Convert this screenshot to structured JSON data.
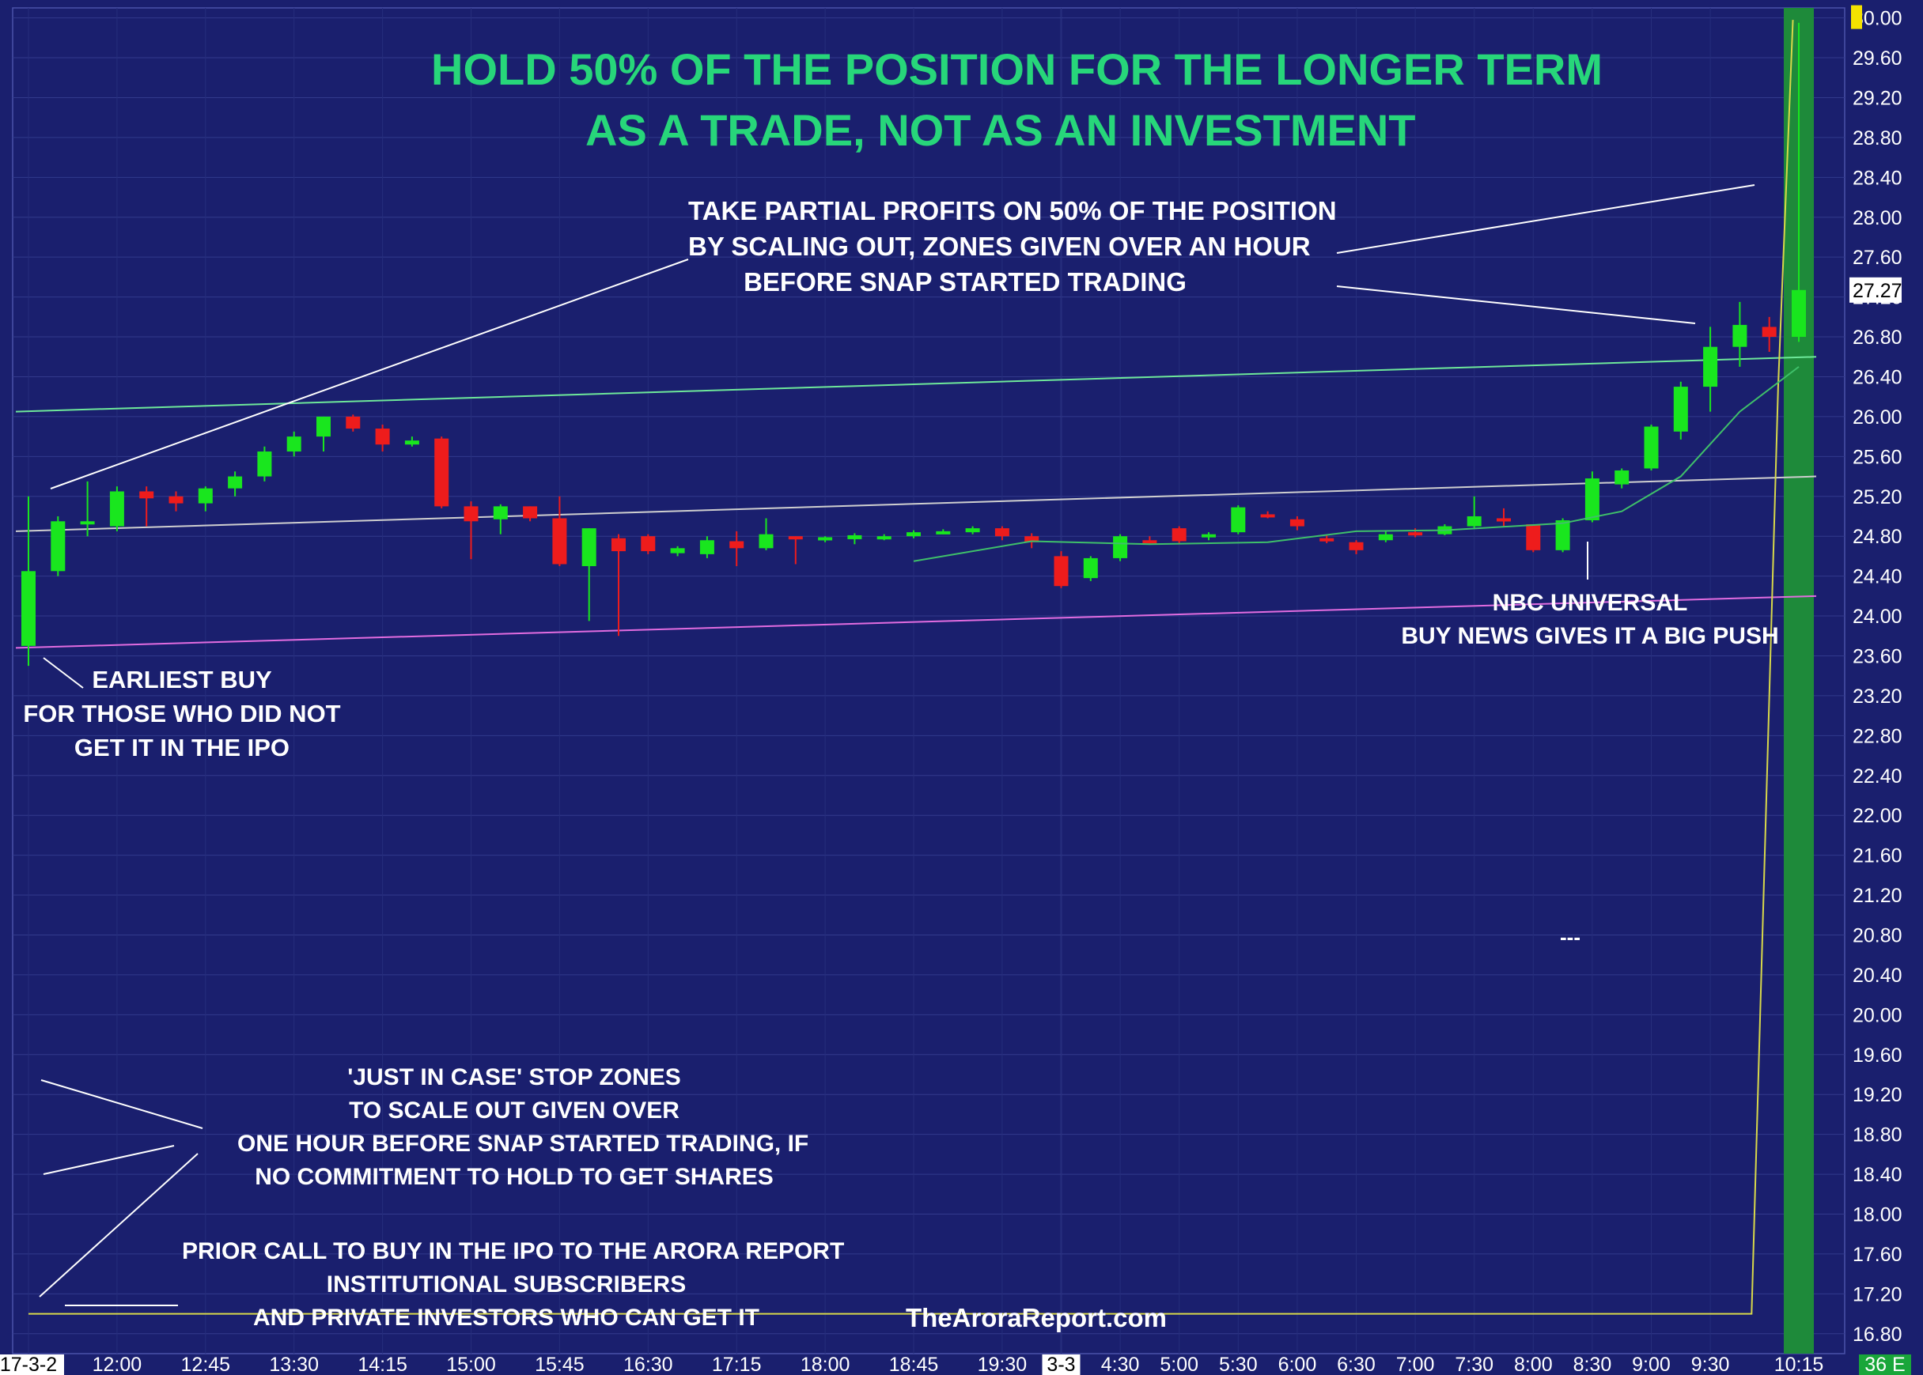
{
  "chart_data": {
    "type": "candlestick",
    "title": "HOLD 50% OF THE POSITION FOR THE LONGER TERM",
    "subtitle": "AS A TRADE, NOT AS AN INVESTMENT",
    "ylim": [
      16.6,
      30.1
    ],
    "yticks": [
      30.0,
      29.6,
      29.2,
      28.8,
      28.4,
      28.0,
      27.6,
      27.2,
      26.8,
      26.4,
      26.0,
      25.6,
      25.2,
      24.8,
      24.4,
      24.0,
      23.6,
      23.2,
      22.8,
      22.4,
      22.0,
      21.6,
      21.2,
      20.8,
      20.4,
      20.0,
      19.6,
      19.2,
      18.8,
      18.4,
      18.0,
      17.6,
      17.2,
      16.8
    ],
    "ytick_labels": [
      "30.00",
      "29.60",
      "29.20",
      "28.80",
      "28.40",
      "28.00",
      "27.60",
      "27.20",
      "26.80",
      "26.40",
      "26.00",
      "25.60",
      "25.20",
      "24.80",
      "24.40",
      "24.00",
      "23.60",
      "23.20",
      "22.80",
      "22.40",
      "22.00",
      "21.60",
      "21.20",
      "20.80",
      "20.40",
      "20.00",
      "19.60",
      "19.20",
      "18.80",
      "18.40",
      "18.00",
      "17.60",
      "17.20",
      "16.80"
    ],
    "last_price_label": "27.27",
    "last_price": 27.27,
    "corner_label": "36 E",
    "xticks": [
      {
        "label": "17-3-2",
        "i": 0,
        "highlight": true
      },
      {
        "label": "12:00",
        "i": 3
      },
      {
        "label": "12:45",
        "i": 6
      },
      {
        "label": "13:30",
        "i": 9
      },
      {
        "label": "14:15",
        "i": 12
      },
      {
        "label": "15:00",
        "i": 15
      },
      {
        "label": "15:45",
        "i": 18
      },
      {
        "label": "16:30",
        "i": 21
      },
      {
        "label": "17:15",
        "i": 24
      },
      {
        "label": "18:00",
        "i": 27
      },
      {
        "label": "18:45",
        "i": 30
      },
      {
        "label": "19:30",
        "i": 33
      },
      {
        "label": "3-3",
        "i": 35,
        "highlight": true
      },
      {
        "label": "4:30",
        "i": 37
      },
      {
        "label": "5:00",
        "i": 39
      },
      {
        "label": "5:30",
        "i": 41
      },
      {
        "label": "6:00",
        "i": 43
      },
      {
        "label": "6:30",
        "i": 45
      },
      {
        "label": "7:00",
        "i": 47
      },
      {
        "label": "7:30",
        "i": 49
      },
      {
        "label": "8:00",
        "i": 51
      },
      {
        "label": "8:30",
        "i": 53
      },
      {
        "label": "9:00",
        "i": 55
      },
      {
        "label": "9:30",
        "i": 57
      },
      {
        "label": "10:15",
        "i": 60
      }
    ],
    "candles": [
      {
        "o": 23.7,
        "h": 25.2,
        "l": 23.5,
        "c": 24.45
      },
      {
        "o": 24.45,
        "h": 25.0,
        "l": 24.4,
        "c": 24.95
      },
      {
        "o": 24.95,
        "h": 25.35,
        "l": 24.8,
        "c": 24.95
      },
      {
        "o": 24.9,
        "h": 25.3,
        "l": 24.85,
        "c": 25.25
      },
      {
        "o": 25.25,
        "h": 25.3,
        "l": 24.9,
        "c": 25.18
      },
      {
        "o": 25.2,
        "h": 25.25,
        "l": 25.05,
        "c": 25.13
      },
      {
        "o": 25.13,
        "h": 25.3,
        "l": 25.05,
        "c": 25.28
      },
      {
        "o": 25.28,
        "h": 25.45,
        "l": 25.2,
        "c": 25.4
      },
      {
        "o": 25.4,
        "h": 25.7,
        "l": 25.35,
        "c": 25.65
      },
      {
        "o": 25.65,
        "h": 25.85,
        "l": 25.6,
        "c": 25.8
      },
      {
        "o": 25.8,
        "h": 26.0,
        "l": 25.65,
        "c": 26.0
      },
      {
        "o": 26.0,
        "h": 26.02,
        "l": 25.85,
        "c": 25.88
      },
      {
        "o": 25.88,
        "h": 25.92,
        "l": 25.65,
        "c": 25.72
      },
      {
        "o": 25.72,
        "h": 25.8,
        "l": 25.7,
        "c": 25.76
      },
      {
        "o": 25.78,
        "h": 25.8,
        "l": 25.08,
        "c": 25.1
      },
      {
        "o": 25.1,
        "h": 25.15,
        "l": 24.57,
        "c": 24.95
      },
      {
        "o": 24.97,
        "h": 25.12,
        "l": 24.82,
        "c": 25.1
      },
      {
        "o": 25.1,
        "h": 25.1,
        "l": 24.95,
        "c": 24.98
      },
      {
        "o": 24.98,
        "h": 25.2,
        "l": 24.5,
        "c": 24.52
      },
      {
        "o": 24.5,
        "h": 24.88,
        "l": 23.95,
        "c": 24.88
      },
      {
        "o": 24.78,
        "h": 24.82,
        "l": 23.8,
        "c": 24.65
      },
      {
        "o": 24.8,
        "h": 24.82,
        "l": 24.62,
        "c": 24.65
      },
      {
        "o": 24.63,
        "h": 24.7,
        "l": 24.6,
        "c": 24.68
      },
      {
        "o": 24.62,
        "h": 24.8,
        "l": 24.58,
        "c": 24.76
      },
      {
        "o": 24.75,
        "h": 24.85,
        "l": 24.5,
        "c": 24.68
      },
      {
        "o": 24.68,
        "h": 24.98,
        "l": 24.66,
        "c": 24.82
      },
      {
        "o": 24.8,
        "h": 24.8,
        "l": 24.52,
        "c": 24.78
      },
      {
        "o": 24.78,
        "h": 24.8,
        "l": 24.74,
        "c": 24.79
      },
      {
        "o": 24.77,
        "h": 24.83,
        "l": 24.72,
        "c": 24.81
      },
      {
        "o": 24.79,
        "h": 24.82,
        "l": 24.76,
        "c": 24.8
      },
      {
        "o": 24.8,
        "h": 24.86,
        "l": 24.78,
        "c": 24.84
      },
      {
        "o": 24.84,
        "h": 24.87,
        "l": 24.82,
        "c": 24.85
      },
      {
        "o": 24.84,
        "h": 24.9,
        "l": 24.82,
        "c": 24.88
      },
      {
        "o": 24.88,
        "h": 24.9,
        "l": 24.76,
        "c": 24.8
      },
      {
        "o": 24.8,
        "h": 24.83,
        "l": 24.68,
        "c": 24.74
      },
      {
        "o": 24.6,
        "h": 24.65,
        "l": 24.28,
        "c": 24.3
      },
      {
        "o": 24.38,
        "h": 24.6,
        "l": 24.35,
        "c": 24.58
      },
      {
        "o": 24.58,
        "h": 24.82,
        "l": 24.55,
        "c": 24.8
      },
      {
        "o": 24.76,
        "h": 24.8,
        "l": 24.72,
        "c": 24.74
      },
      {
        "o": 24.88,
        "h": 24.9,
        "l": 24.72,
        "c": 24.75
      },
      {
        "o": 24.8,
        "h": 24.84,
        "l": 24.76,
        "c": 24.82
      },
      {
        "o": 24.84,
        "h": 25.11,
        "l": 24.82,
        "c": 25.09
      },
      {
        "o": 25.02,
        "h": 25.05,
        "l": 24.98,
        "c": 25.0
      },
      {
        "o": 24.97,
        "h": 25.0,
        "l": 24.86,
        "c": 24.9
      },
      {
        "o": 24.78,
        "h": 24.82,
        "l": 24.73,
        "c": 24.76
      },
      {
        "o": 24.74,
        "h": 24.76,
        "l": 24.62,
        "c": 24.66
      },
      {
        "o": 24.76,
        "h": 24.86,
        "l": 24.74,
        "c": 24.82
      },
      {
        "o": 24.84,
        "h": 24.88,
        "l": 24.79,
        "c": 24.82
      },
      {
        "o": 24.82,
        "h": 24.92,
        "l": 24.81,
        "c": 24.9
      },
      {
        "o": 24.9,
        "h": 25.2,
        "l": 24.88,
        "c": 25.0
      },
      {
        "o": 24.98,
        "h": 25.08,
        "l": 24.9,
        "c": 24.95
      },
      {
        "o": 24.92,
        "h": 24.92,
        "l": 24.64,
        "c": 24.66
      },
      {
        "o": 24.66,
        "h": 24.98,
        "l": 24.64,
        "c": 24.96
      },
      {
        "o": 24.96,
        "h": 25.45,
        "l": 24.94,
        "c": 25.38
      },
      {
        "o": 25.32,
        "h": 25.48,
        "l": 25.28,
        "c": 25.46
      },
      {
        "o": 25.48,
        "h": 25.92,
        "l": 25.46,
        "c": 25.9
      },
      {
        "o": 25.85,
        "h": 26.35,
        "l": 25.77,
        "c": 26.3
      },
      {
        "o": 26.3,
        "h": 26.9,
        "l": 26.05,
        "c": 26.7
      },
      {
        "o": 26.7,
        "h": 27.15,
        "l": 26.5,
        "c": 26.92
      },
      {
        "o": 26.9,
        "h": 27.0,
        "l": 26.65,
        "c": 26.8
      },
      {
        "o": 26.8,
        "h": 29.95,
        "l": 26.75,
        "c": 27.27
      }
    ],
    "moving_average": [
      {
        "i": 30,
        "v": 24.55
      },
      {
        "i": 34,
        "v": 24.75
      },
      {
        "i": 38,
        "v": 24.72
      },
      {
        "i": 42,
        "v": 24.74
      },
      {
        "i": 45,
        "v": 24.85
      },
      {
        "i": 48,
        "v": 24.86
      },
      {
        "i": 52,
        "v": 24.93
      },
      {
        "i": 54,
        "v": 25.05
      },
      {
        "i": 56,
        "v": 25.4
      },
      {
        "i": 58,
        "v": 26.05
      },
      {
        "i": 60,
        "v": 26.5
      }
    ],
    "trendlines": [
      {
        "color": "#6ee89a",
        "from": {
          "i": 0,
          "v": 26.05
        },
        "to": {
          "i": 60,
          "v": 26.6
        }
      },
      {
        "color": "#cfcfcf",
        "from": {
          "i": 0,
          "v": 24.85
        },
        "to": {
          "i": 60,
          "v": 25.4
        }
      },
      {
        "color": "#e26ce0",
        "from": {
          "i": 0,
          "v": 23.68
        },
        "to": {
          "i": 60,
          "v": 24.2
        }
      }
    ],
    "yellow_line": [
      {
        "i": 0,
        "v": 17.0
      },
      {
        "i": 58.4,
        "v": 17.0
      },
      {
        "i": 59.3,
        "v": 26.3
      },
      {
        "i": 59.8,
        "v": 29.98
      }
    ],
    "small_marker": "---",
    "website": "TheAroraReport.com"
  },
  "annotations": {
    "profits": [
      "TAKE PARTIAL PROFITS ON 50% OF THE POSITION",
      "BY SCALING OUT, ZONES GIVEN OVER AN HOUR",
      "BEFORE SNAP STARTED TRADING"
    ],
    "earliest": [
      "EARLIEST BUY",
      "FOR THOSE WHO DID NOT",
      "GET IT IN THE IPO"
    ],
    "nbc": [
      "NBC  UNIVERSAL",
      "BUY NEWS GIVES IT A BIG PUSH"
    ],
    "stop": [
      "'JUST IN CASE' STOP ZONES",
      "TO SCALE OUT GIVEN OVER",
      "ONE HOUR BEFORE SNAP STARTED TRADING, IF",
      "NO COMMITMENT TO HOLD TO GET SHARES"
    ],
    "prior": [
      "PRIOR CALL TO BUY IN THE IPO TO THE ARORA REPORT",
      "INSTITUTIONAL SUBSCRIBERS",
      "AND PRIVATE INVESTORS WHO CAN GET IT"
    ]
  },
  "colors": {
    "background": "#1a1f6e",
    "title": "#27d67a",
    "up_candle": "#19e61e",
    "down_candle": "#ee1c1c",
    "highlight_band": "#1e8a3a",
    "axis_label_box": "#ffffff"
  }
}
